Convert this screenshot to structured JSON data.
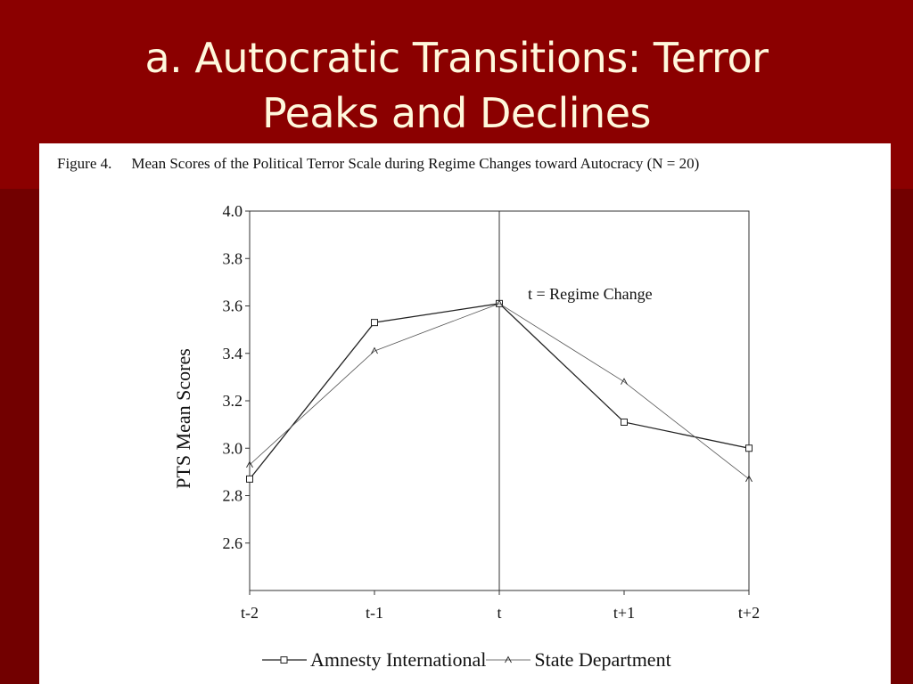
{
  "slide": {
    "title_line1": "a. Autocratic Transitions: Terror",
    "title_line2": "Peaks and Declines"
  },
  "figure": {
    "label": "Figure 4.",
    "caption": "Mean Scores of the Political Terror Scale during Regime Changes toward Autocracy (N = 20)"
  },
  "colors": {
    "background": "#7a0000",
    "title_text": "#fff8dc",
    "line": "#222222"
  },
  "chart_data": {
    "type": "line",
    "title": "",
    "xlabel": "",
    "ylabel": "PTS Mean Scores",
    "categories": [
      "t-2",
      "t-1",
      "t",
      "t+1",
      "t+2"
    ],
    "ylim": [
      2.4,
      4.0
    ],
    "yticks": [
      2.6,
      2.8,
      3.0,
      3.2,
      3.4,
      3.6,
      3.8,
      4.0
    ],
    "ytick_labels": [
      "2.6",
      "2.8",
      "3.0",
      "3.2",
      "3.4",
      "3.6",
      "3.8",
      "4.0"
    ],
    "grid": false,
    "legend_position": "bottom",
    "annotation": "t = Regime Change",
    "vertical_reference": "t",
    "series": [
      {
        "name": "Amnesty International",
        "marker": "square",
        "values": [
          2.87,
          3.53,
          3.61,
          3.11,
          3.0
        ]
      },
      {
        "name": "State Department",
        "marker": "triangle",
        "values": [
          2.93,
          3.41,
          3.61,
          3.28,
          2.87
        ]
      }
    ]
  }
}
